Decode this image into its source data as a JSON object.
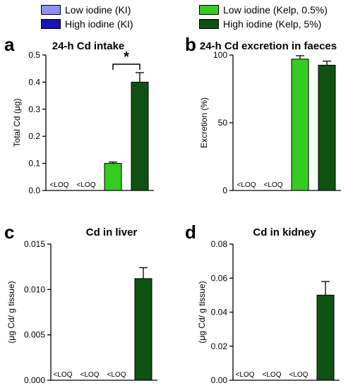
{
  "legend": [
    {
      "label": "Low iodine (KI)",
      "color": "#8f8ff5"
    },
    {
      "label": "High iodine (KI)",
      "color": "#1a12b3"
    },
    {
      "label": "Low iodine (Kelp, 0.5%)",
      "color": "#33cc1f"
    },
    {
      "label": "High iodine (Kelp, 5%)",
      "color": "#0e5212"
    }
  ],
  "chart_data": [
    {
      "panel": "a",
      "type": "bar",
      "title": "24-h Cd intake",
      "ylabel": "Total Cd (μg)",
      "ylim": [
        0,
        0.5
      ],
      "yticks": [
        0.0,
        0.1,
        0.2,
        0.3,
        0.4,
        0.5
      ],
      "ytick_labels": [
        "0.0",
        "0.1",
        "0.2",
        "0.3",
        "0.4",
        "0.5"
      ],
      "categories": [
        "Low iodine (KI)",
        "High iodine (KI)",
        "Low iodine (Kelp, 0.5%)",
        "High iodine (Kelp, 5%)"
      ],
      "values": [
        null,
        null,
        0.1,
        0.4
      ],
      "errors": [
        null,
        null,
        0.005,
        0.035
      ],
      "value_labels": [
        "<LOQ",
        "<LOQ",
        "",
        ""
      ],
      "significance": {
        "between": [
          2,
          3
        ],
        "label": "*"
      }
    },
    {
      "panel": "b",
      "type": "bar",
      "title": "24-h Cd excretion in faeces",
      "ylabel": "Excretion (%)",
      "ylim": [
        0,
        100
      ],
      "yticks": [
        0,
        50,
        100
      ],
      "ytick_labels": [
        "0",
        "50",
        "100"
      ],
      "categories": [
        "Low iodine (KI)",
        "High iodine (KI)",
        "Low iodine (Kelp, 0.5%)",
        "High iodine (Kelp, 5%)"
      ],
      "values": [
        null,
        null,
        97,
        92.5
      ],
      "errors": [
        null,
        null,
        2.5,
        3
      ],
      "value_labels": [
        "<LOQ",
        "<LOQ",
        "",
        ""
      ]
    },
    {
      "panel": "c",
      "type": "bar",
      "title": "Cd in liver",
      "ylabel": "(μg Cd/ g tissue)",
      "ylim": [
        0,
        0.015
      ],
      "yticks": [
        0,
        0.005,
        0.01,
        0.015
      ],
      "ytick_labels": [
        "0.000",
        "0.005",
        "0.010",
        "0.015"
      ],
      "categories": [
        "Low iodine (KI)",
        "High iodine (KI)",
        "Low iodine (Kelp, 0.5%)",
        "High iodine (Kelp, 5%)"
      ],
      "values": [
        null,
        null,
        null,
        0.0112
      ],
      "errors": [
        null,
        null,
        null,
        0.0012
      ],
      "value_labels": [
        "<LOQ",
        "<LOQ",
        "<LOQ",
        ""
      ]
    },
    {
      "panel": "d",
      "type": "bar",
      "title": "Cd in kidney",
      "ylabel": "(μg Cd/ g tissue)",
      "ylim": [
        0,
        0.08
      ],
      "yticks": [
        0,
        0.02,
        0.04,
        0.06,
        0.08
      ],
      "ytick_labels": [
        "0.00",
        "0.02",
        "0.04",
        "0.06",
        "0.08"
      ],
      "categories": [
        "Low iodine (KI)",
        "High iodine (KI)",
        "Low iodine (Kelp, 0.5%)",
        "High iodine (Kelp, 5%)"
      ],
      "values": [
        null,
        null,
        null,
        0.05
      ],
      "errors": [
        null,
        null,
        null,
        0.008
      ],
      "value_labels": [
        "<LOQ",
        "<LOQ",
        "<LOQ",
        ""
      ]
    }
  ]
}
